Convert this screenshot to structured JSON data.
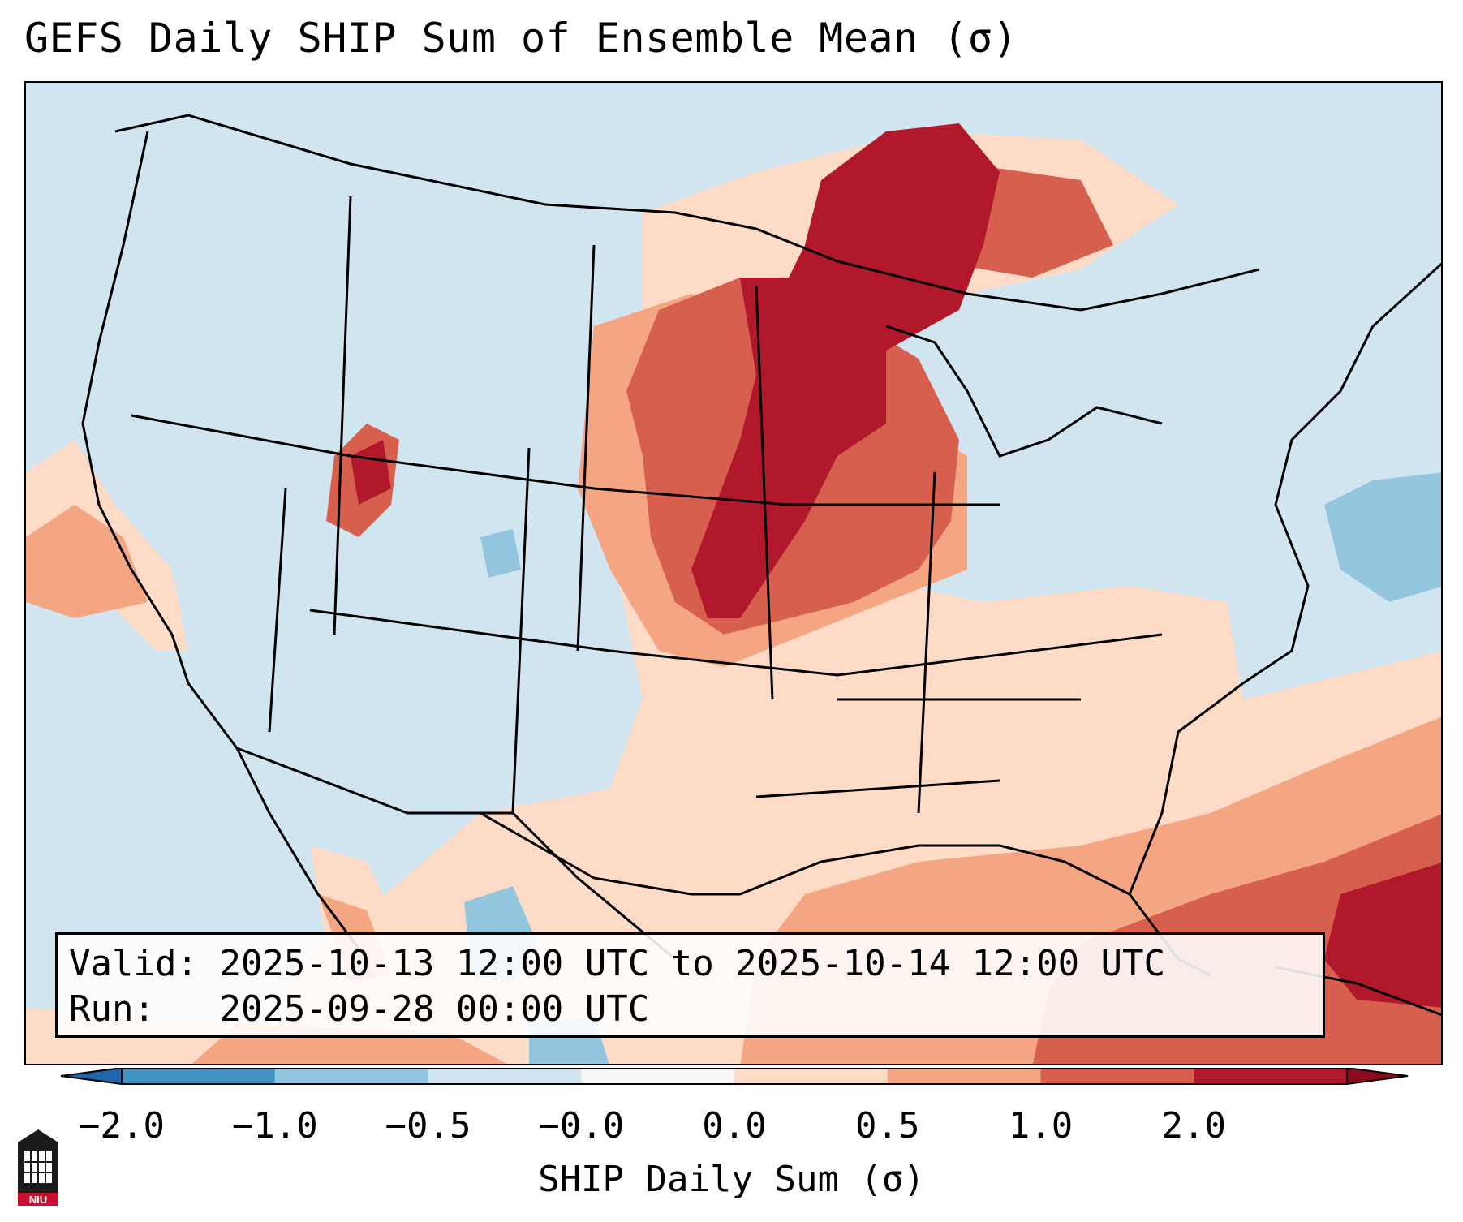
{
  "title": "GEFS Daily SHIP Sum of Ensemble Mean (σ)",
  "info": {
    "valid_label": "Valid:",
    "valid_value": "2025-10-13 12:00 UTC to 2025-10-14 12:00 UTC",
    "run_label": "Run:",
    "run_value": "2025-09-28 00:00 UTC"
  },
  "colorbar": {
    "label": "SHIP Daily Sum (σ)",
    "ticks": [
      "−2.0",
      "−1.0",
      "−0.5",
      "−0.0",
      "0.0",
      "0.5",
      "1.0",
      "2.0"
    ],
    "colors": [
      "#4393c3",
      "#92c5de",
      "#d1e5f0",
      "#f7f7f7",
      "#fddbc7",
      "#f4a582",
      "#d6604d",
      "#b2182b"
    ],
    "extend": "both"
  },
  "logo": {
    "text": "NIU"
  },
  "field_colors": {
    "background": "#d1e5f0",
    "light_red": "#fddbc7",
    "mid_red": "#f4a582",
    "red": "#d6604d",
    "dark_red": "#b2182b",
    "light_blue": "#92c5de"
  }
}
